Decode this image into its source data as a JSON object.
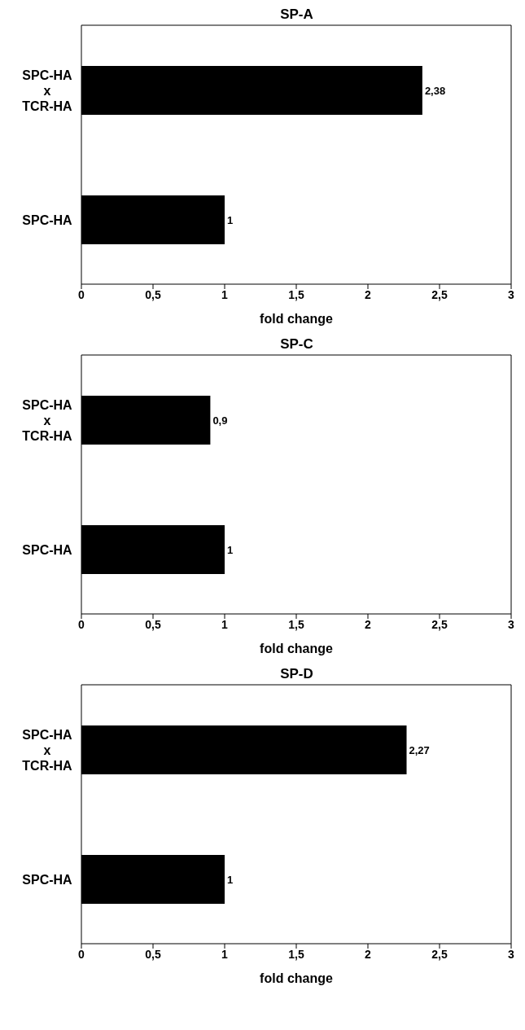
{
  "chart_data": [
    {
      "type": "bar",
      "orientation": "horizontal",
      "title": "SP-A",
      "xlabel": "fold change",
      "categories": [
        "SPC-HA x TCR-HA",
        "SPC-HA"
      ],
      "values": [
        2.38,
        1
      ],
      "value_labels": [
        "2,38",
        "1"
      ],
      "color": "#000000",
      "xlim": [
        0,
        3
      ],
      "xticks": [
        0,
        {
          "value": 0.5,
          "label": "0,5"
        },
        1,
        {
          "value": 1.5,
          "label": "1,5"
        },
        2,
        {
          "value": 2.5,
          "label": "2,5"
        },
        3
      ]
    },
    {
      "type": "bar",
      "orientation": "horizontal",
      "title": "SP-C",
      "xlabel": "fold change",
      "categories": [
        "SPC-HA x TCR-HA",
        "SPC-HA"
      ],
      "values": [
        0.9,
        1
      ],
      "value_labels": [
        "0,9",
        "1"
      ],
      "color": "#000000",
      "xlim": [
        0,
        3
      ],
      "xticks": [
        0,
        {
          "value": 0.5,
          "label": "0,5"
        },
        1,
        {
          "value": 1.5,
          "label": "1,5"
        },
        2,
        {
          "value": 2.5,
          "label": "2,5"
        },
        3
      ]
    },
    {
      "type": "bar",
      "orientation": "horizontal",
      "title": "SP-D",
      "xlabel": "fold change",
      "categories": [
        "SPC-HA x TCR-HA",
        "SPC-HA"
      ],
      "values": [
        2.27,
        1
      ],
      "value_labels": [
        "2,27",
        "1"
      ],
      "color": "#000000",
      "xlim": [
        0,
        3
      ],
      "xticks": [
        0,
        {
          "value": 0.5,
          "label": "0,5"
        },
        1,
        {
          "value": 1.5,
          "label": "1,5"
        },
        2,
        {
          "value": 2.5,
          "label": "2,5"
        },
        3
      ]
    }
  ]
}
